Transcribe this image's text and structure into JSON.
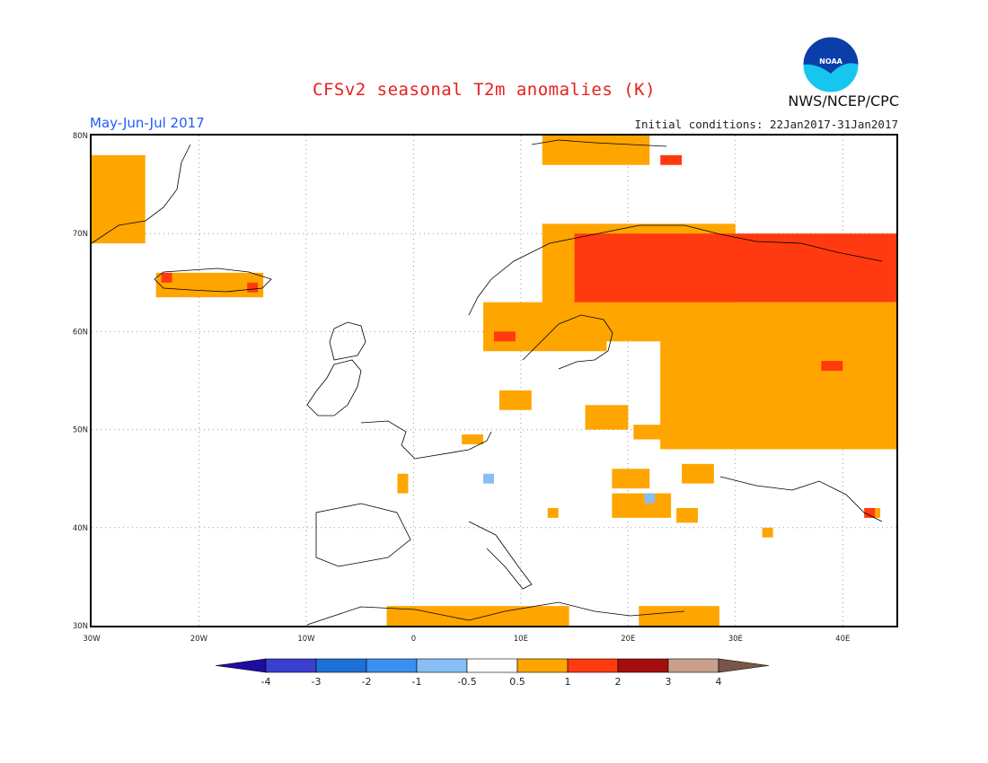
{
  "header": {
    "title": "CFSv2 seasonal T2m anomalies (K)",
    "period": "May-Jun-Jul 2017",
    "initial_conditions": "Initial conditions: 22Jan2017-31Jan2017",
    "agency": "NWS/NCEP/CPC",
    "logo_text": "NOAA",
    "logo_icon": "noaa-logo-icon"
  },
  "map": {
    "lon_range": [
      -30,
      45
    ],
    "lat_range": [
      30,
      80
    ],
    "lon_ticks": [
      -30,
      -20,
      -10,
      0,
      10,
      20,
      30,
      40
    ],
    "lat_ticks": [
      30,
      40,
      50,
      60,
      70,
      80
    ],
    "lon_tick_labels": [
      "30W",
      "20W",
      "10W",
      "0",
      "10E",
      "20E",
      "30E",
      "40E"
    ],
    "lat_tick_labels": [
      "30N",
      "40N",
      "50N",
      "60N",
      "70N",
      "80N"
    ],
    "grid": "dotted"
  },
  "anomaly_regions": [
    {
      "level": "0.5-1",
      "color": "#ffa500",
      "lon": [
        -30,
        -25
      ],
      "lat": [
        69,
        78
      ]
    },
    {
      "level": "0.5-1",
      "color": "#ffa500",
      "lon": [
        -24,
        -14
      ],
      "lat": [
        63.5,
        66
      ]
    },
    {
      "level": "0.5-1",
      "color": "#ffa500",
      "lon": [
        12,
        22
      ],
      "lat": [
        77,
        80
      ]
    },
    {
      "level": "0.5-1",
      "color": "#ffa500",
      "lon": [
        6.5,
        18
      ],
      "lat": [
        58,
        63
      ]
    },
    {
      "level": "0.5-1",
      "color": "#ffa500",
      "lon": [
        12,
        30
      ],
      "lat": [
        59,
        71
      ]
    },
    {
      "level": "0.5-1",
      "color": "#ffa500",
      "lon": [
        23,
        45
      ],
      "lat": [
        48,
        63
      ]
    },
    {
      "level": "0.5-1",
      "color": "#ffa500",
      "lon": [
        8,
        11
      ],
      "lat": [
        52,
        54
      ]
    },
    {
      "level": "0.5-1",
      "color": "#ffa500",
      "lon": [
        16,
        20
      ],
      "lat": [
        50,
        52.5
      ]
    },
    {
      "level": "0.5-1",
      "color": "#ffa500",
      "lon": [
        20.5,
        24
      ],
      "lat": [
        49,
        50.5
      ]
    },
    {
      "level": "0.5-1",
      "color": "#ffa500",
      "lon": [
        18.5,
        22
      ],
      "lat": [
        44,
        46
      ]
    },
    {
      "level": "0.5-1",
      "color": "#ffa500",
      "lon": [
        25,
        28
      ],
      "lat": [
        44.5,
        46.5
      ]
    },
    {
      "level": "0.5-1",
      "color": "#ffa500",
      "lon": [
        18.5,
        24
      ],
      "lat": [
        41,
        43.5
      ]
    },
    {
      "level": "0.5-1",
      "color": "#ffa500",
      "lon": [
        24.5,
        26.5
      ],
      "lat": [
        40.5,
        42
      ]
    },
    {
      "level": "0.5-1",
      "color": "#ffa500",
      "lon": [
        4.5,
        6.5
      ],
      "lat": [
        48.5,
        49.5
      ]
    },
    {
      "level": "0.5-1",
      "color": "#ffa500",
      "lon": [
        -1.5,
        -0.5
      ],
      "lat": [
        43.5,
        45.5
      ]
    },
    {
      "level": "0.5-1",
      "color": "#ffa500",
      "lon": [
        12.5,
        13.5
      ],
      "lat": [
        41,
        42
      ]
    },
    {
      "level": "0.5-1",
      "color": "#ffa500",
      "lon": [
        32.5,
        33.5
      ],
      "lat": [
        39,
        40
      ]
    },
    {
      "level": "0.5-1",
      "color": "#ffa500",
      "lon": [
        42.5,
        43.5
      ],
      "lat": [
        41,
        42
      ]
    },
    {
      "level": "0.5-1",
      "color": "#ffa500",
      "lon": [
        -2.5,
        14.5
      ],
      "lat": [
        30,
        32
      ]
    },
    {
      "level": "0.5-1",
      "color": "#ffa500",
      "lon": [
        21,
        28.5
      ],
      "lat": [
        30,
        32
      ]
    },
    {
      "level": "1-2",
      "color": "#ff3a10",
      "lon": [
        15,
        45
      ],
      "lat": [
        63,
        70
      ]
    },
    {
      "level": "1-2",
      "color": "#ff3a10",
      "lon": [
        7.5,
        9.5
      ],
      "lat": [
        59,
        60
      ]
    },
    {
      "level": "1-2",
      "color": "#ff3a10",
      "lon": [
        23,
        25
      ],
      "lat": [
        77,
        78
      ]
    },
    {
      "level": "1-2",
      "color": "#ff3a10",
      "lon": [
        -23.5,
        -22.5
      ],
      "lat": [
        65,
        66
      ]
    },
    {
      "level": "1-2",
      "color": "#ff3a10",
      "lon": [
        -15.5,
        -14.5
      ],
      "lat": [
        64,
        65
      ]
    },
    {
      "level": "1-2",
      "color": "#ff3a10",
      "lon": [
        38,
        40
      ],
      "lat": [
        56,
        57
      ]
    },
    {
      "level": "1-2",
      "color": "#ff3a10",
      "lon": [
        42,
        43
      ],
      "lat": [
        41,
        42
      ]
    },
    {
      "level": "-1--0.5",
      "color": "#87bef5",
      "lon": [
        6.5,
        7.5
      ],
      "lat": [
        44.5,
        45.5
      ]
    },
    {
      "level": "-1--0.5",
      "color": "#87bef5",
      "lon": [
        21.5,
        22.5
      ],
      "lat": [
        42.5,
        43.5
      ]
    }
  ],
  "colorbar": {
    "labels": [
      "-4",
      "-3",
      "-2",
      "-1",
      "-0.5",
      "0.5",
      "1",
      "2",
      "3",
      "4"
    ],
    "colors": [
      "#1f0da0",
      "#3a3fcf",
      "#1e6fd8",
      "#3b8ff0",
      "#87bef5",
      "#ffffff",
      "#ffa500",
      "#ff3a10",
      "#a50e0e",
      "#c8a08c",
      "#7a5548"
    ]
  }
}
